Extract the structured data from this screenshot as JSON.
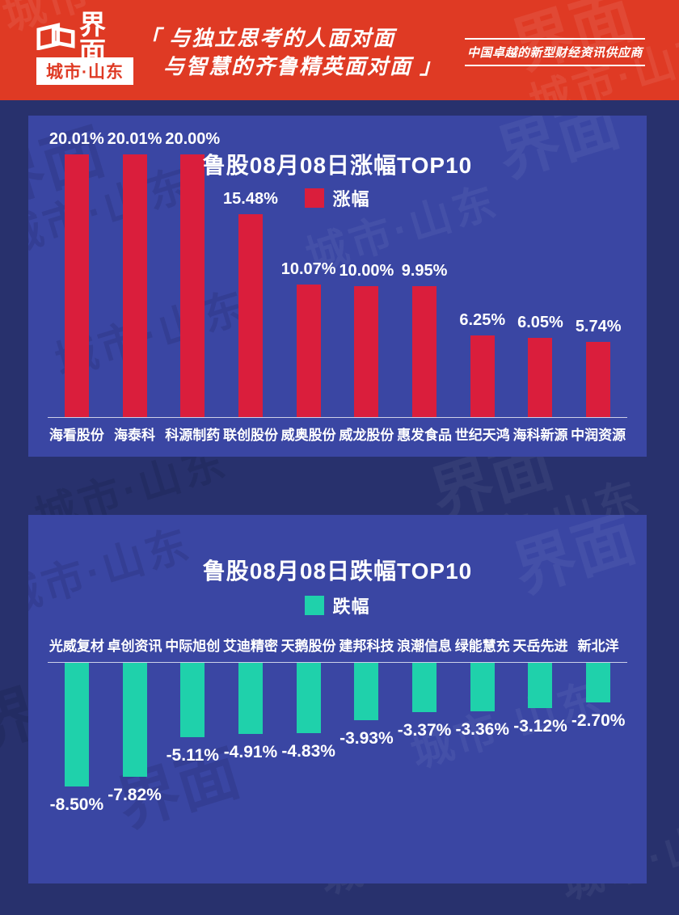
{
  "header": {
    "logo_text": "界面",
    "logo_sub": "城市·山东",
    "slogan_line1": "「 与独立思考的人面对面",
    "slogan_line2": "与智慧的齐鲁精英面对面 」",
    "tagline": "中国卓越的新型财经资讯供应商"
  },
  "watermark": {
    "line1": "界面",
    "line2": "城市·山东"
  },
  "colors": {
    "header_bg": "#df3a24",
    "page_bg": "#28316d",
    "panel_bg": "#3a46a3",
    "gain_bar": "#da1e3c",
    "loss_bar": "#1fd1ab",
    "text": "#ffffff"
  },
  "chart_data": [
    {
      "type": "bar",
      "orientation": "up",
      "title": "鲁股08月08日涨幅TOP10",
      "legend": "涨幅",
      "bar_color": "#da1e3c",
      "categories": [
        "海看股份",
        "海泰科",
        "科源制药",
        "联创股份",
        "威奥股份",
        "威龙股份",
        "惠发食品",
        "世纪天鸿",
        "海科新源",
        "中润资源"
      ],
      "values": [
        20.01,
        20.01,
        20.0,
        15.48,
        10.07,
        10.0,
        9.95,
        6.25,
        6.05,
        5.74
      ],
      "value_labels": [
        "20.01%",
        "20.01%",
        "20.00%",
        "15.48%",
        "10.07%",
        "10.00%",
        "9.95%",
        "6.25%",
        "6.05%",
        "5.74%"
      ],
      "xlabel": "",
      "ylabel": "",
      "ylim": [
        0,
        20.01
      ],
      "grid": false,
      "legend_position": "top-center"
    },
    {
      "type": "bar",
      "orientation": "down",
      "title": "鲁股08月08日跌幅TOP10",
      "legend": "跌幅",
      "bar_color": "#1fd1ab",
      "categories": [
        "光威复材",
        "卓创资讯",
        "中际旭创",
        "艾迪精密",
        "天鹅股份",
        "建邦科技",
        "浪潮信息",
        "绿能慧充",
        "天岳先进",
        "新北洋"
      ],
      "values": [
        -8.5,
        -7.82,
        -5.11,
        -4.91,
        -4.83,
        -3.93,
        -3.37,
        -3.36,
        -3.12,
        -2.7
      ],
      "value_labels": [
        "-8.50%",
        "-7.82%",
        "-5.11%",
        "-4.91%",
        "-4.83%",
        "-3.93%",
        "-3.37%",
        "-3.36%",
        "-3.12%",
        "-2.70%"
      ],
      "xlabel": "",
      "ylabel": "",
      "ylim": [
        -8.5,
        0
      ],
      "grid": false,
      "legend_position": "top-center"
    }
  ]
}
